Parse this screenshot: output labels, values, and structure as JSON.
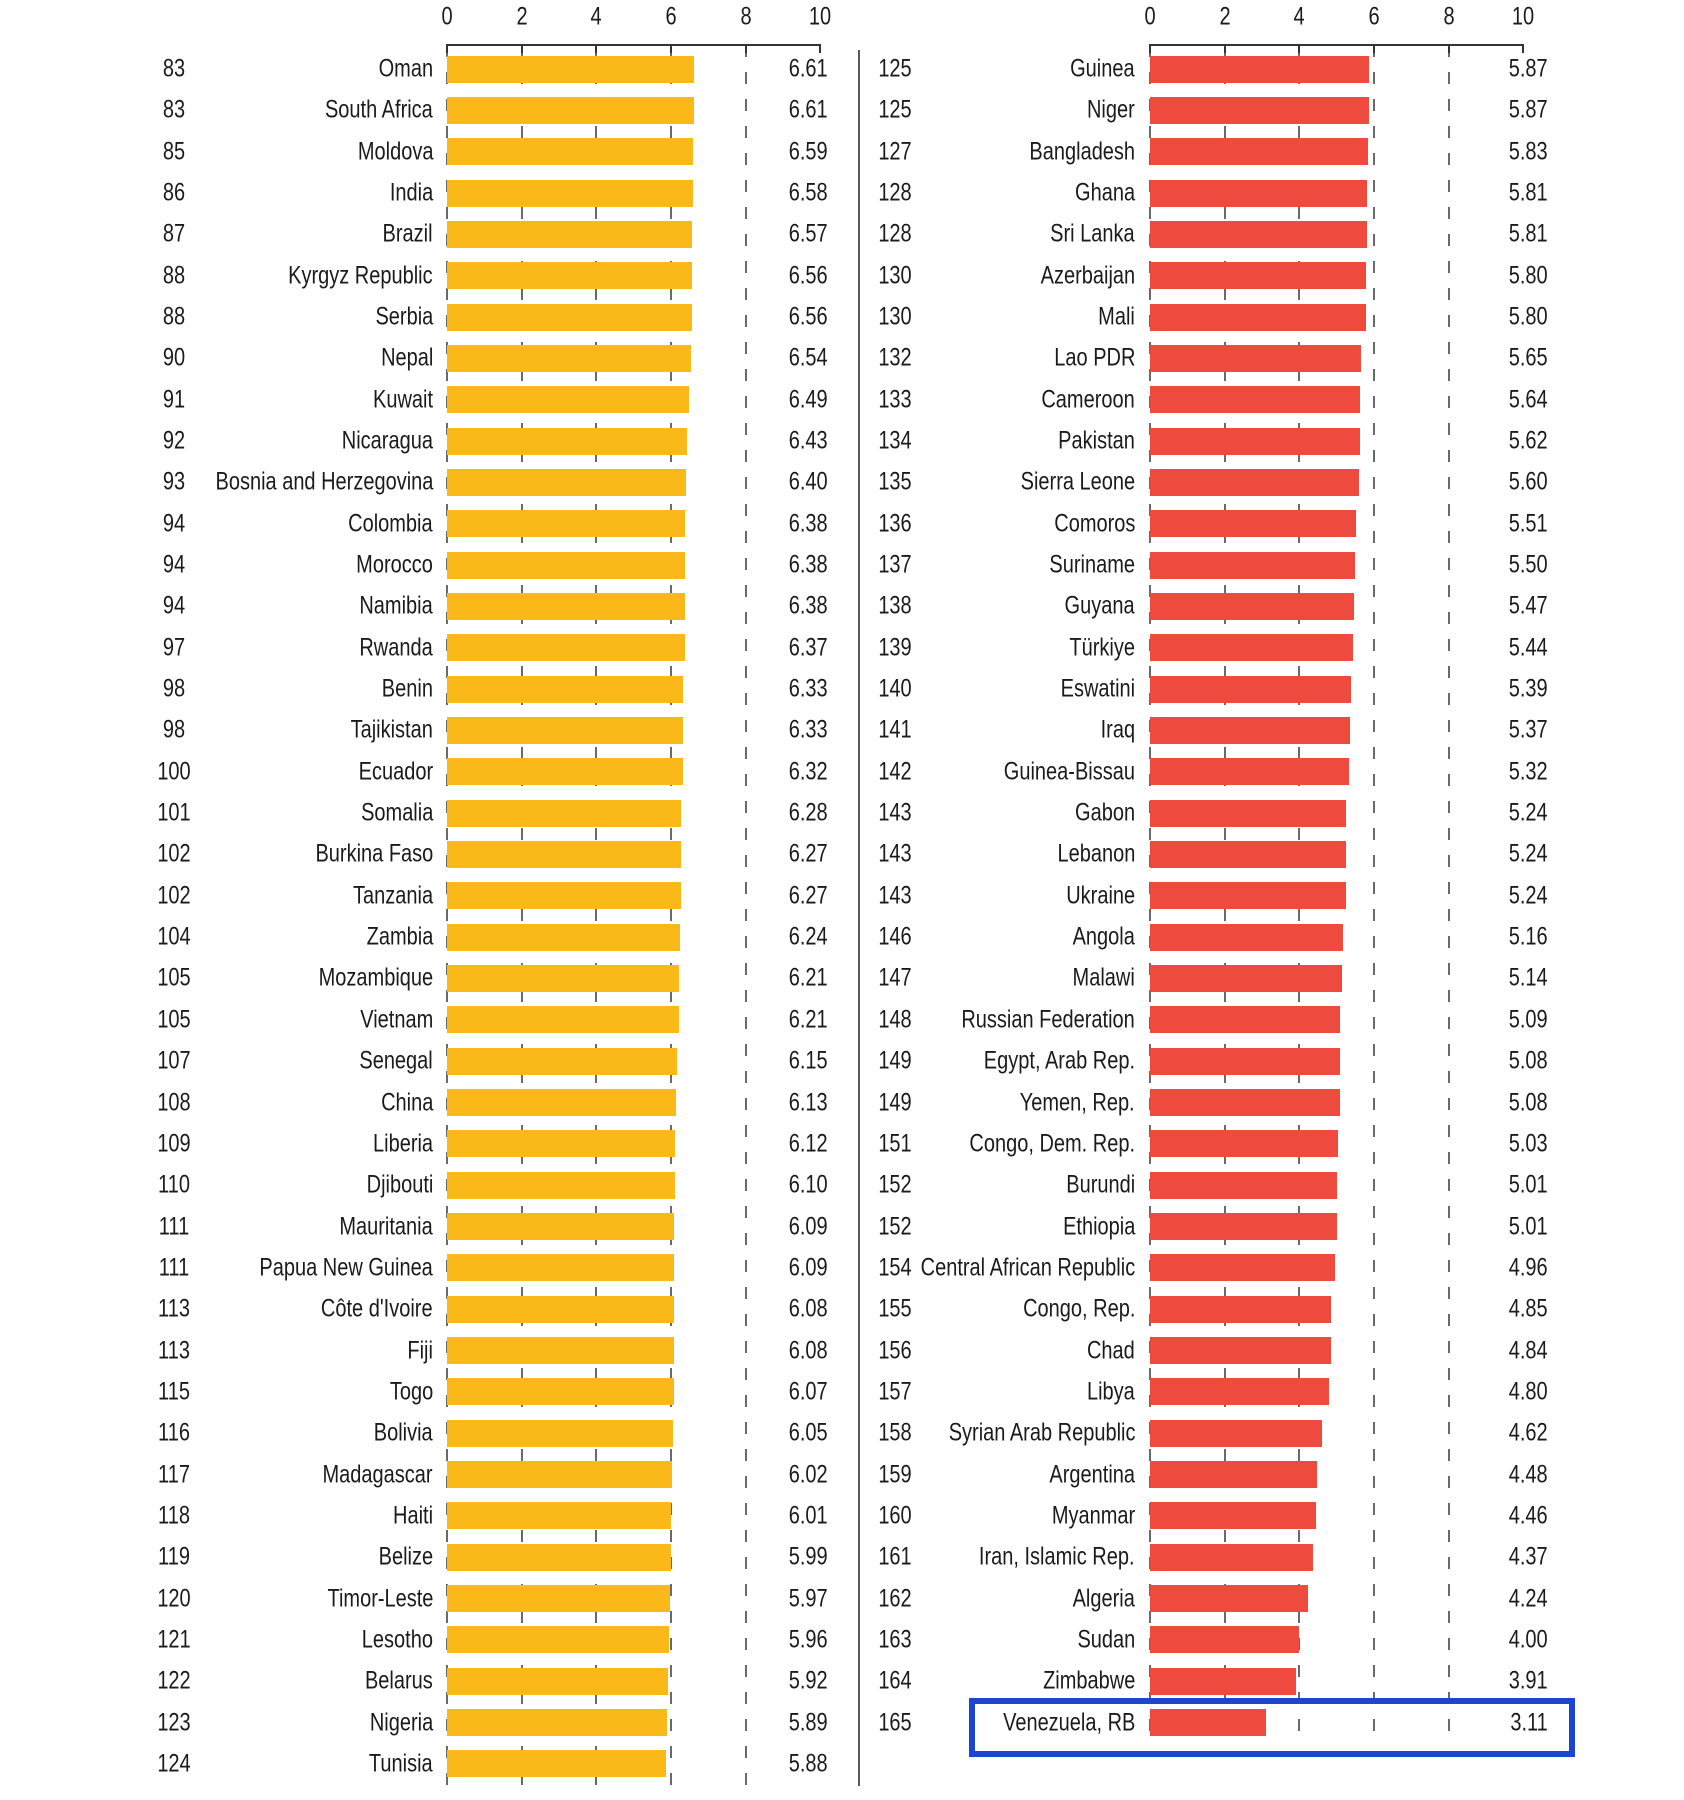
{
  "colors": {
    "left_bar": "#FBB919",
    "right_bar": "#EE4A3E",
    "text": "#1b1b1b",
    "gridline": "#6a6a6a",
    "axis": "#333333",
    "separator": "#5a5a5a",
    "highlight_box": "#1D46D0"
  },
  "chart_data": [
    {
      "type": "bar",
      "orientation": "horizontal",
      "panel": "left",
      "title": "",
      "xlabel": "",
      "ylabel": "",
      "bar_color": "#FBB919",
      "axis": {
        "min": 0,
        "max": 10,
        "ticks": [
          "0",
          "2",
          "4",
          "6",
          "8",
          "10"
        ],
        "gridlines_at": [
          0,
          2,
          4,
          6,
          8
        ],
        "grid": "dashed"
      },
      "rows": [
        {
          "rank": "83",
          "country": "Oman",
          "value": "6.61"
        },
        {
          "rank": "83",
          "country": "South Africa",
          "value": "6.61"
        },
        {
          "rank": "85",
          "country": "Moldova",
          "value": "6.59"
        },
        {
          "rank": "86",
          "country": "India",
          "value": "6.58"
        },
        {
          "rank": "87",
          "country": "Brazil",
          "value": "6.57"
        },
        {
          "rank": "88",
          "country": "Kyrgyz Republic",
          "value": "6.56"
        },
        {
          "rank": "88",
          "country": "Serbia",
          "value": "6.56"
        },
        {
          "rank": "90",
          "country": "Nepal",
          "value": "6.54"
        },
        {
          "rank": "91",
          "country": "Kuwait",
          "value": "6.49"
        },
        {
          "rank": "92",
          "country": "Nicaragua",
          "value": "6.43"
        },
        {
          "rank": "93",
          "country": "Bosnia and Herzegovina",
          "value": "6.40"
        },
        {
          "rank": "94",
          "country": "Colombia",
          "value": "6.38"
        },
        {
          "rank": "94",
          "country": "Morocco",
          "value": "6.38"
        },
        {
          "rank": "94",
          "country": "Namibia",
          "value": "6.38"
        },
        {
          "rank": "97",
          "country": "Rwanda",
          "value": "6.37"
        },
        {
          "rank": "98",
          "country": "Benin",
          "value": "6.33"
        },
        {
          "rank": "98",
          "country": "Tajikistan",
          "value": "6.33"
        },
        {
          "rank": "100",
          "country": "Ecuador",
          "value": "6.32"
        },
        {
          "rank": "101",
          "country": "Somalia",
          "value": "6.28"
        },
        {
          "rank": "102",
          "country": "Burkina Faso",
          "value": "6.27"
        },
        {
          "rank": "102",
          "country": "Tanzania",
          "value": "6.27"
        },
        {
          "rank": "104",
          "country": "Zambia",
          "value": "6.24"
        },
        {
          "rank": "105",
          "country": "Mozambique",
          "value": "6.21"
        },
        {
          "rank": "105",
          "country": "Vietnam",
          "value": "6.21"
        },
        {
          "rank": "107",
          "country": "Senegal",
          "value": "6.15"
        },
        {
          "rank": "108",
          "country": "China",
          "value": "6.13"
        },
        {
          "rank": "109",
          "country": "Liberia",
          "value": "6.12"
        },
        {
          "rank": "110",
          "country": "Djibouti",
          "value": "6.10"
        },
        {
          "rank": "111",
          "country": "Mauritania",
          "value": "6.09"
        },
        {
          "rank": "111",
          "country": "Papua New Guinea",
          "value": "6.09"
        },
        {
          "rank": "113",
          "country": "Côte d'Ivoire",
          "value": "6.08"
        },
        {
          "rank": "113",
          "country": "Fiji",
          "value": "6.08"
        },
        {
          "rank": "115",
          "country": "Togo",
          "value": "6.07"
        },
        {
          "rank": "116",
          "country": "Bolivia",
          "value": "6.05"
        },
        {
          "rank": "117",
          "country": "Madagascar",
          "value": "6.02"
        },
        {
          "rank": "118",
          "country": "Haiti",
          "value": "6.01"
        },
        {
          "rank": "119",
          "country": "Belize",
          "value": "5.99"
        },
        {
          "rank": "120",
          "country": "Timor-Leste",
          "value": "5.97"
        },
        {
          "rank": "121",
          "country": "Lesotho",
          "value": "5.96"
        },
        {
          "rank": "122",
          "country": "Belarus",
          "value": "5.92"
        },
        {
          "rank": "123",
          "country": "Nigeria",
          "value": "5.89"
        },
        {
          "rank": "124",
          "country": "Tunisia",
          "value": "5.88"
        }
      ]
    },
    {
      "type": "bar",
      "orientation": "horizontal",
      "panel": "right",
      "title": "",
      "xlabel": "",
      "ylabel": "",
      "bar_color": "#EE4A3E",
      "axis": {
        "min": 0,
        "max": 10,
        "ticks": [
          "0",
          "2",
          "4",
          "6",
          "8",
          "10"
        ],
        "gridlines_at": [
          0,
          2,
          4,
          6,
          8
        ],
        "grid": "dashed"
      },
      "highlight": {
        "country": "Venezuela, RB",
        "box_color": "#1D46D0"
      },
      "rows": [
        {
          "rank": "125",
          "country": "Guinea",
          "value": "5.87"
        },
        {
          "rank": "125",
          "country": "Niger",
          "value": "5.87"
        },
        {
          "rank": "127",
          "country": "Bangladesh",
          "value": "5.83"
        },
        {
          "rank": "128",
          "country": "Ghana",
          "value": "5.81"
        },
        {
          "rank": "128",
          "country": "Sri Lanka",
          "value": "5.81"
        },
        {
          "rank": "130",
          "country": "Azerbaijan",
          "value": "5.80"
        },
        {
          "rank": "130",
          "country": "Mali",
          "value": "5.80"
        },
        {
          "rank": "132",
          "country": "Lao PDR",
          "value": "5.65"
        },
        {
          "rank": "133",
          "country": "Cameroon",
          "value": "5.64"
        },
        {
          "rank": "134",
          "country": "Pakistan",
          "value": "5.62"
        },
        {
          "rank": "135",
          "country": "Sierra Leone",
          "value": "5.60"
        },
        {
          "rank": "136",
          "country": "Comoros",
          "value": "5.51"
        },
        {
          "rank": "137",
          "country": "Suriname",
          "value": "5.50"
        },
        {
          "rank": "138",
          "country": "Guyana",
          "value": "5.47"
        },
        {
          "rank": "139",
          "country": "Türkiye",
          "value": "5.44"
        },
        {
          "rank": "140",
          "country": "Eswatini",
          "value": "5.39"
        },
        {
          "rank": "141",
          "country": "Iraq",
          "value": "5.37"
        },
        {
          "rank": "142",
          "country": "Guinea-Bissau",
          "value": "5.32"
        },
        {
          "rank": "143",
          "country": "Gabon",
          "value": "5.24"
        },
        {
          "rank": "143",
          "country": "Lebanon",
          "value": "5.24"
        },
        {
          "rank": "143",
          "country": "Ukraine",
          "value": "5.24"
        },
        {
          "rank": "146",
          "country": "Angola",
          "value": "5.16"
        },
        {
          "rank": "147",
          "country": "Malawi",
          "value": "5.14"
        },
        {
          "rank": "148",
          "country": "Russian Federation",
          "value": "5.09"
        },
        {
          "rank": "149",
          "country": "Egypt, Arab Rep.",
          "value": "5.08"
        },
        {
          "rank": "149",
          "country": "Yemen, Rep.",
          "value": "5.08"
        },
        {
          "rank": "151",
          "country": "Congo, Dem. Rep.",
          "value": "5.03"
        },
        {
          "rank": "152",
          "country": "Burundi",
          "value": "5.01"
        },
        {
          "rank": "152",
          "country": "Ethiopia",
          "value": "5.01"
        },
        {
          "rank": "154",
          "country": "Central African Republic",
          "value": "4.96"
        },
        {
          "rank": "155",
          "country": "Congo, Rep.",
          "value": "4.85"
        },
        {
          "rank": "156",
          "country": "Chad",
          "value": "4.84"
        },
        {
          "rank": "157",
          "country": "Libya",
          "value": "4.80"
        },
        {
          "rank": "158",
          "country": "Syrian Arab Republic",
          "value": "4.62"
        },
        {
          "rank": "159",
          "country": "Argentina",
          "value": "4.48"
        },
        {
          "rank": "160",
          "country": "Myanmar",
          "value": "4.46"
        },
        {
          "rank": "161",
          "country": "Iran, Islamic Rep.",
          "value": "4.37"
        },
        {
          "rank": "162",
          "country": "Algeria",
          "value": "4.24"
        },
        {
          "rank": "163",
          "country": "Sudan",
          "value": "4.00"
        },
        {
          "rank": "164",
          "country": "Zimbabwe",
          "value": "3.91"
        },
        {
          "rank": "165",
          "country": "Venezuela, RB",
          "value": "3.11"
        }
      ]
    }
  ]
}
